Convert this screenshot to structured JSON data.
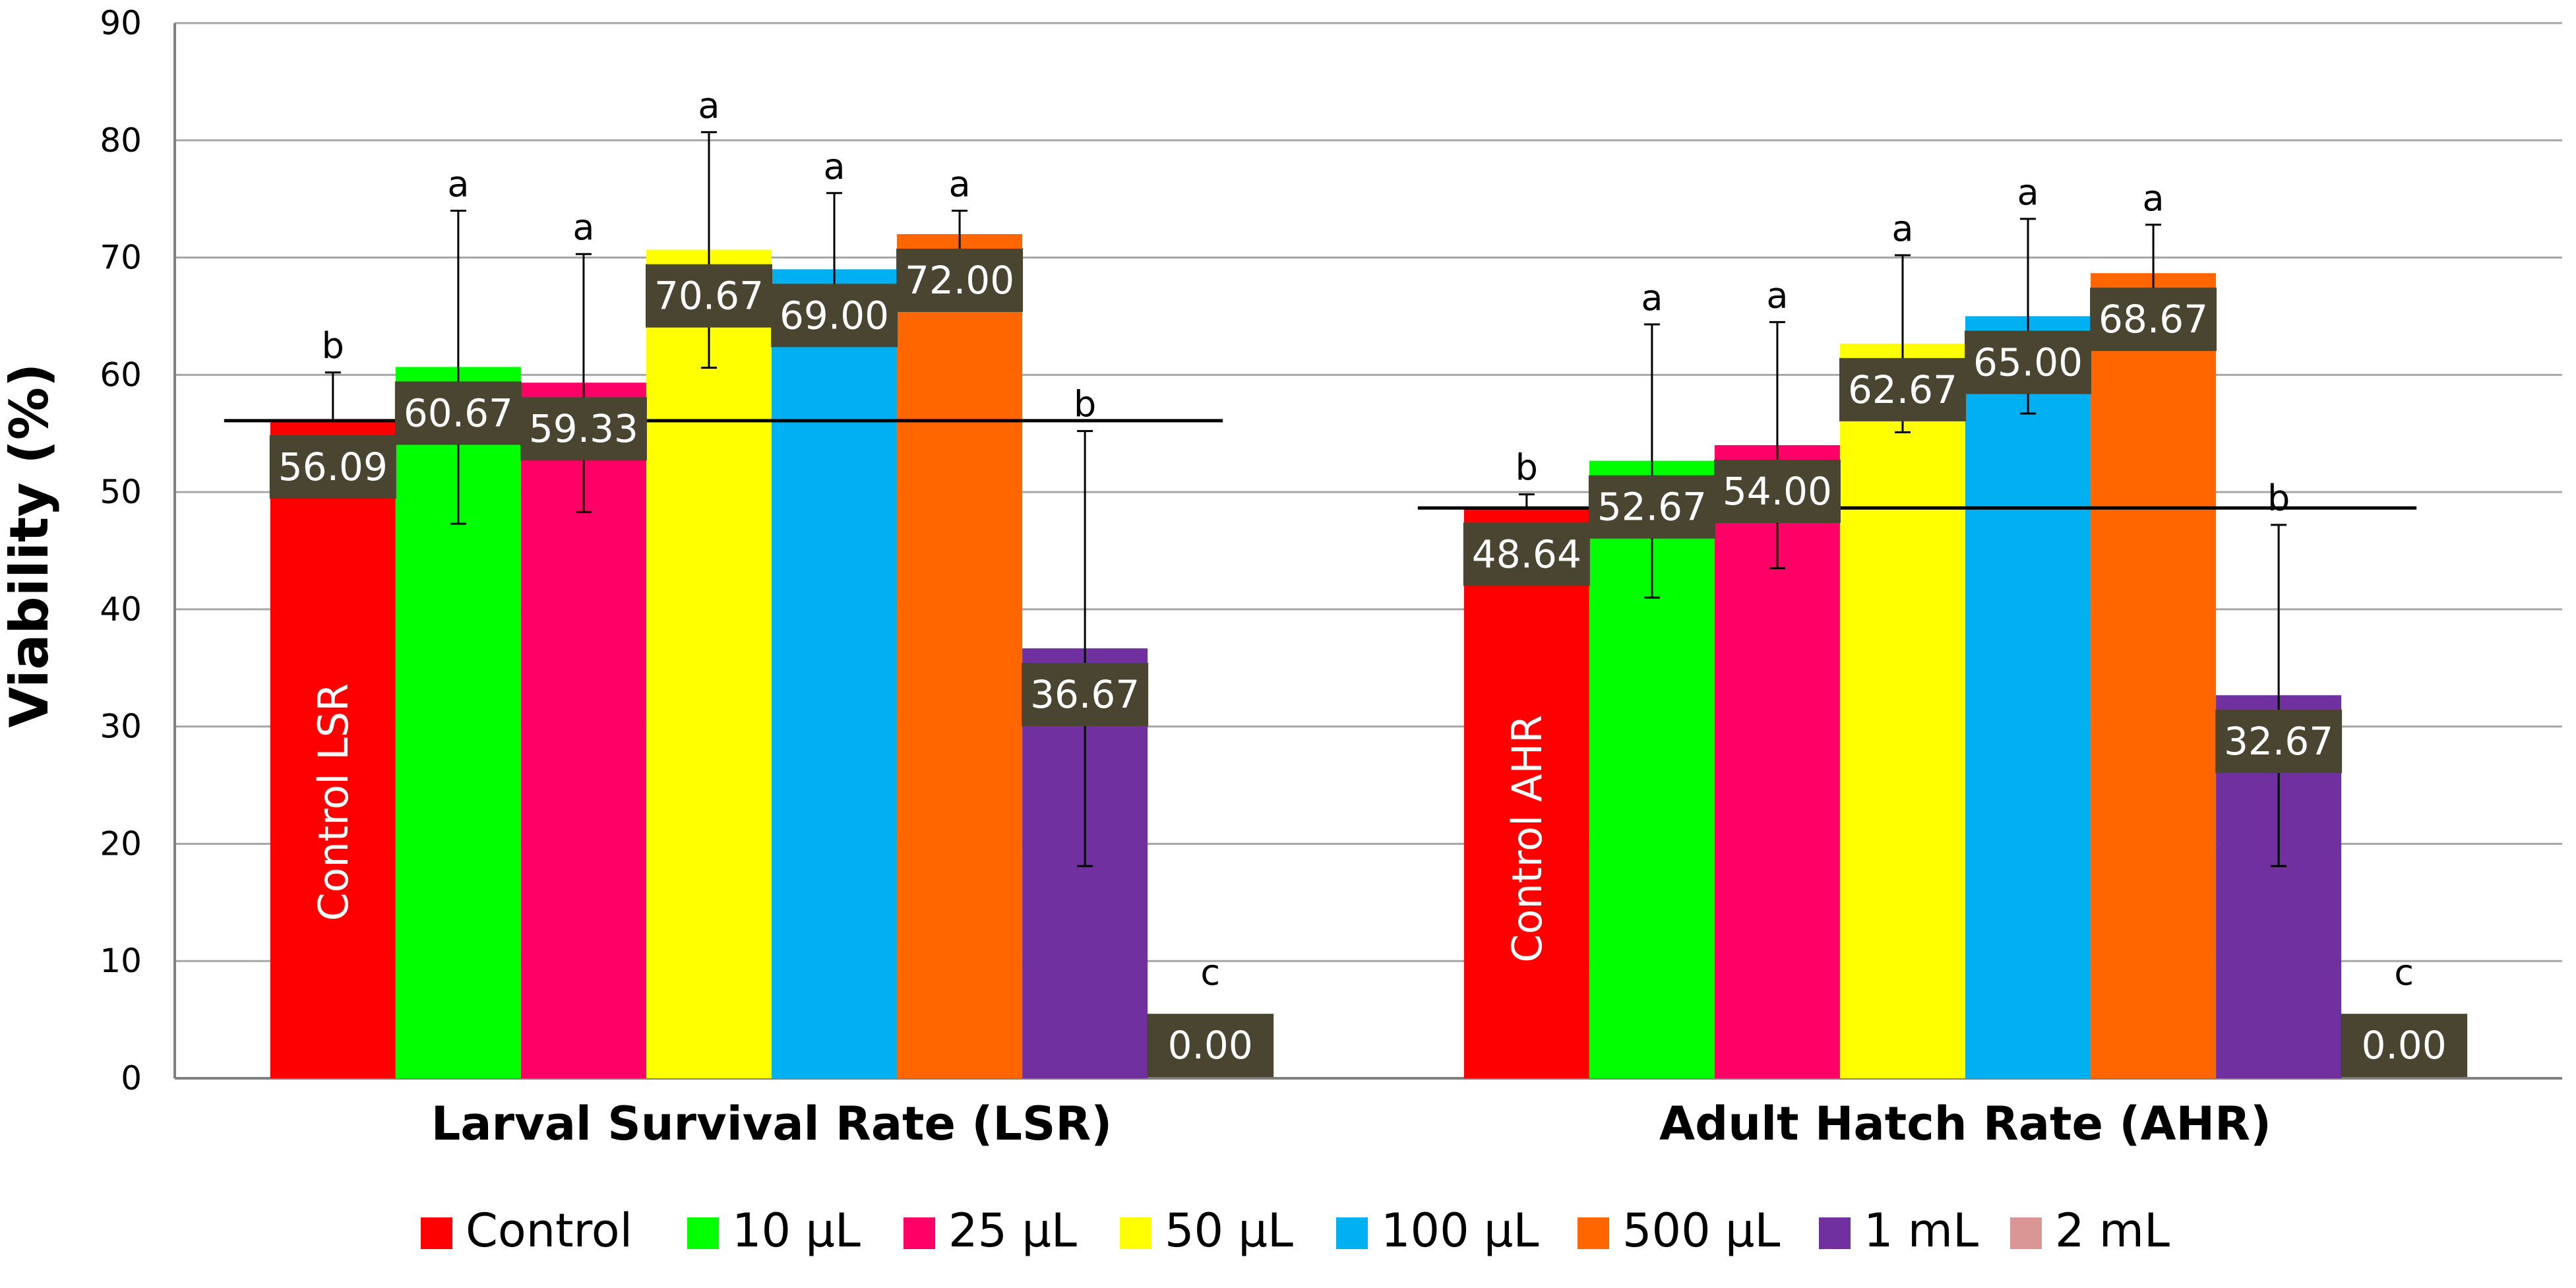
{
  "chart_data": {
    "type": "bar",
    "ylabel": "Viability (%)",
    "ylim": [
      0,
      90
    ],
    "yticks": [
      "0",
      "10",
      "20",
      "30",
      "40",
      "50",
      "60",
      "70",
      "80",
      "90"
    ],
    "grid": true,
    "legend_position": "bottom",
    "categories": [
      "Larval Survival Rate (LSR)",
      "Adult Hatch Rate (AHR)"
    ],
    "control_labels": [
      "Control LSR",
      "Control AHR"
    ],
    "series": [
      {
        "name": "Control",
        "color": "#ff0000",
        "values": [
          56.09,
          48.64
        ],
        "labels": [
          "56.09",
          "48.64"
        ],
        "err_high": [
          60.2,
          49.8
        ],
        "err_low": [
          56.09,
          48.64
        ],
        "sig": [
          "b",
          "b"
        ]
      },
      {
        "name": "10 µL",
        "color": "#00ff00",
        "values": [
          60.67,
          52.67
        ],
        "labels": [
          "60.67",
          "52.67"
        ],
        "err_high": [
          74.0,
          64.3
        ],
        "err_low": [
          47.3,
          41.0
        ],
        "sig": [
          "a",
          "a"
        ]
      },
      {
        "name": "25 µL",
        "color": "#ff0066",
        "values": [
          59.33,
          54.0
        ],
        "labels": [
          "59.33",
          "54.00"
        ],
        "err_high": [
          70.3,
          64.5
        ],
        "err_low": [
          48.3,
          43.5
        ],
        "sig": [
          "a",
          "a"
        ]
      },
      {
        "name": "50 µL",
        "color": "#ffff00",
        "values": [
          70.67,
          62.67
        ],
        "labels": [
          "70.67",
          "62.67"
        ],
        "err_high": [
          80.7,
          70.2
        ],
        "err_low": [
          60.6,
          55.1
        ],
        "sig": [
          "a",
          "a"
        ]
      },
      {
        "name": "100 µL",
        "color": "#00b0f0",
        "values": [
          69.0,
          65.0
        ],
        "labels": [
          "69.00",
          "65.00"
        ],
        "err_high": [
          75.5,
          73.3
        ],
        "err_low": [
          62.5,
          56.7
        ],
        "sig": [
          "a",
          "a"
        ]
      },
      {
        "name": "500 µL",
        "color": "#ff6600",
        "values": [
          72.0,
          68.67
        ],
        "labels": [
          "72.00",
          "68.67"
        ],
        "err_high": [
          74.0,
          72.8
        ],
        "err_low": [
          70.0,
          64.5
        ],
        "sig": [
          "a",
          "a"
        ]
      },
      {
        "name": "1 mL",
        "color": "#7030a0",
        "values": [
          36.67,
          32.67
        ],
        "labels": [
          "36.67",
          "32.67"
        ],
        "err_high": [
          55.2,
          47.2
        ],
        "err_low": [
          18.1,
          18.1
        ],
        "sig": [
          "b",
          "b"
        ]
      },
      {
        "name": "2 mL",
        "color": "#d99694",
        "values": [
          0.0,
          0.0
        ],
        "labels": [
          "0.00",
          "0.00"
        ],
        "err_high": [
          0.0,
          0.0
        ],
        "err_low": [
          0.0,
          0.0
        ],
        "sig": [
          "c",
          "c"
        ]
      }
    ],
    "control_line_values": [
      56.09,
      48.64
    ]
  }
}
